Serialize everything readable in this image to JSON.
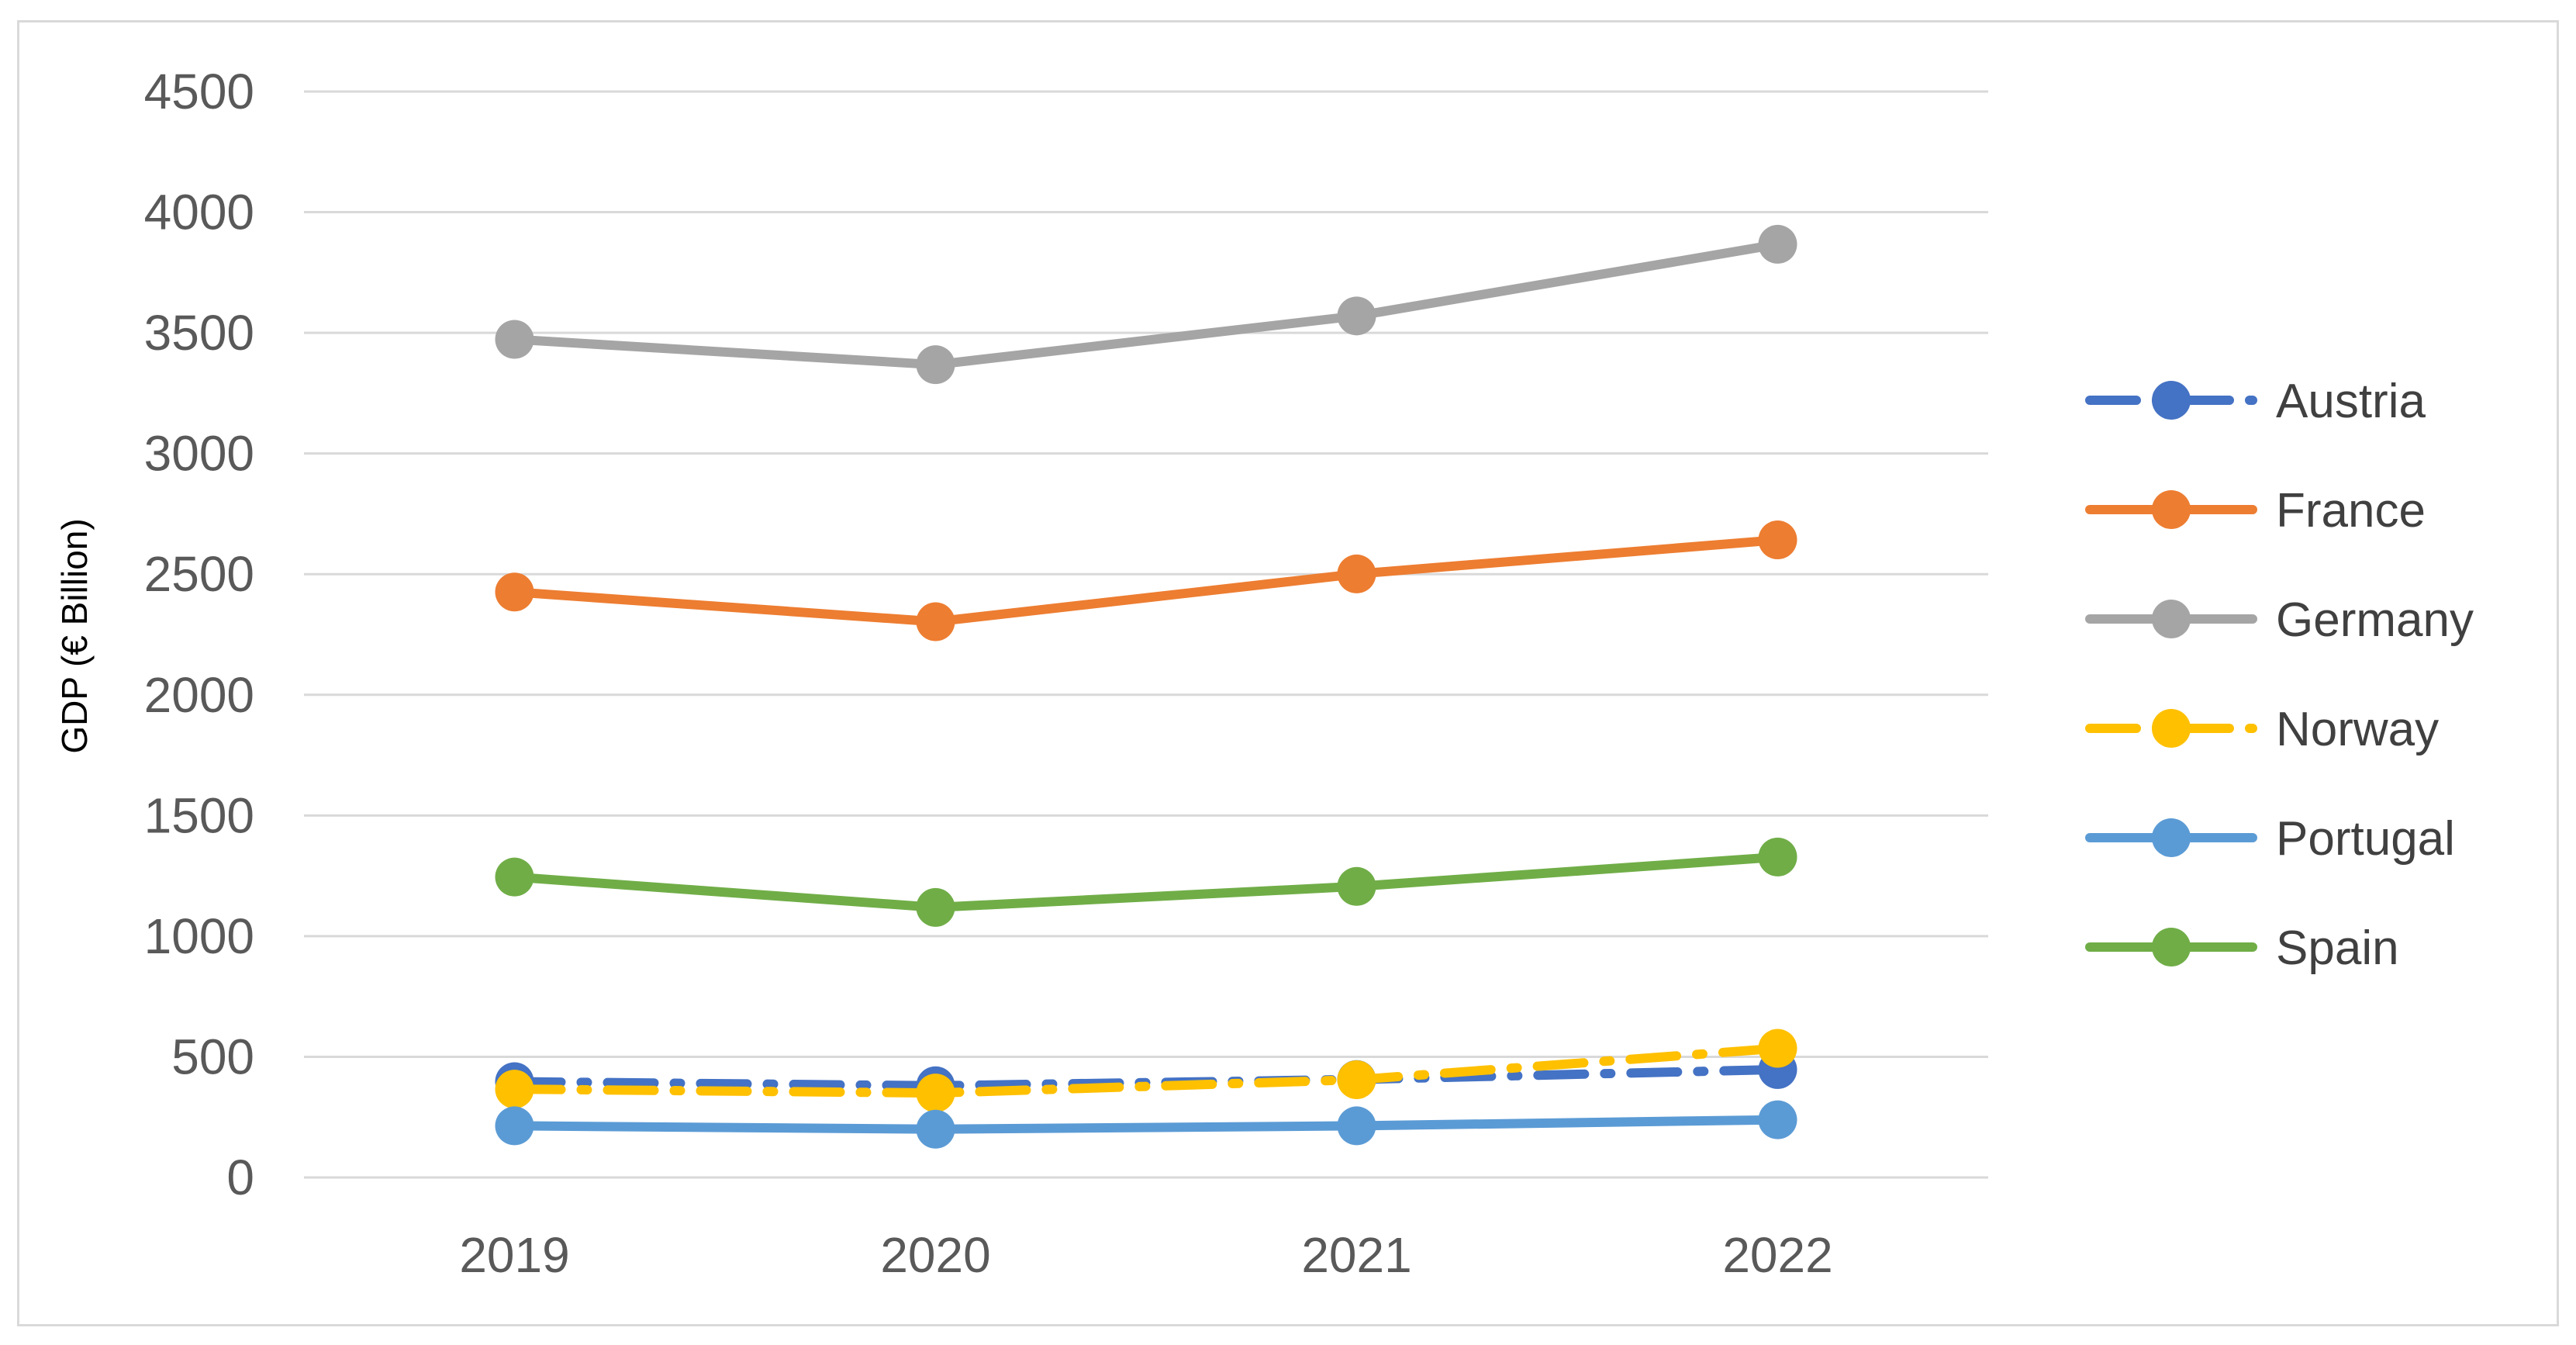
{
  "chart_data": {
    "type": "line",
    "title": "",
    "xlabel": "",
    "ylabel": "GDP (€ Billion)",
    "categories": [
      "2019",
      "2020",
      "2021",
      "2022"
    ],
    "ylim": [
      0,
      4500
    ],
    "yticks": [
      0,
      500,
      1000,
      1500,
      2000,
      2500,
      3000,
      3500,
      4000,
      4500
    ],
    "grid": "horizontal",
    "legend_position": "right",
    "series": [
      {
        "name": "Austria",
        "values": [
          397,
          380,
          406,
          447
        ],
        "color": "#4472C4",
        "line_style": "dash-dot"
      },
      {
        "name": "France",
        "values": [
          2426,
          2303,
          2501,
          2642
        ],
        "color": "#ED7D31",
        "line_style": "solid"
      },
      {
        "name": "Germany",
        "values": [
          3473,
          3368,
          3570,
          3867
        ],
        "color": "#A5A5A5",
        "line_style": "solid"
      },
      {
        "name": "Norway",
        "values": [
          366,
          350,
          405,
          535
        ],
        "color": "#FFC000",
        "line_style": "dash-dot"
      },
      {
        "name": "Portugal",
        "values": [
          214,
          200,
          214,
          239
        ],
        "color": "#5B9BD5",
        "line_style": "solid"
      },
      {
        "name": "Spain",
        "values": [
          1245,
          1119,
          1206,
          1328
        ],
        "color": "#70AD47",
        "line_style": "solid"
      }
    ]
  }
}
